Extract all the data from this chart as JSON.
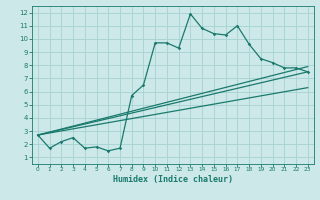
{
  "xlabel": "Humidex (Indice chaleur)",
  "ylabel": "",
  "bg_color": "#cce8e8",
  "grid_color": "#aad4d4",
  "line_color": "#1a7a6e",
  "xlim": [
    -0.5,
    23.5
  ],
  "ylim": [
    0.5,
    12.5
  ],
  "xticks": [
    0,
    1,
    2,
    3,
    4,
    5,
    6,
    7,
    8,
    9,
    10,
    11,
    12,
    13,
    14,
    15,
    16,
    17,
    18,
    19,
    20,
    21,
    22,
    23
  ],
  "yticks": [
    1,
    2,
    3,
    4,
    5,
    6,
    7,
    8,
    9,
    10,
    11,
    12
  ],
  "line1_x": [
    0,
    1,
    2,
    3,
    4,
    5,
    6,
    7,
    8,
    9,
    10,
    11,
    12,
    13,
    14,
    15,
    16,
    17,
    18,
    19,
    20,
    21,
    22,
    23
  ],
  "line1_y": [
    2.7,
    1.7,
    2.2,
    2.5,
    1.7,
    1.8,
    1.5,
    1.7,
    5.7,
    6.5,
    9.7,
    9.7,
    9.3,
    11.9,
    10.8,
    10.4,
    10.3,
    11.0,
    9.6,
    8.5,
    8.2,
    7.8,
    7.8,
    7.5
  ],
  "line2_x": [
    0,
    23
  ],
  "line2_y": [
    2.7,
    7.5
  ],
  "line3_x": [
    0,
    23
  ],
  "line3_y": [
    2.7,
    6.3
  ],
  "line4_x": [
    0,
    23
  ],
  "line4_y": [
    2.7,
    7.9
  ]
}
